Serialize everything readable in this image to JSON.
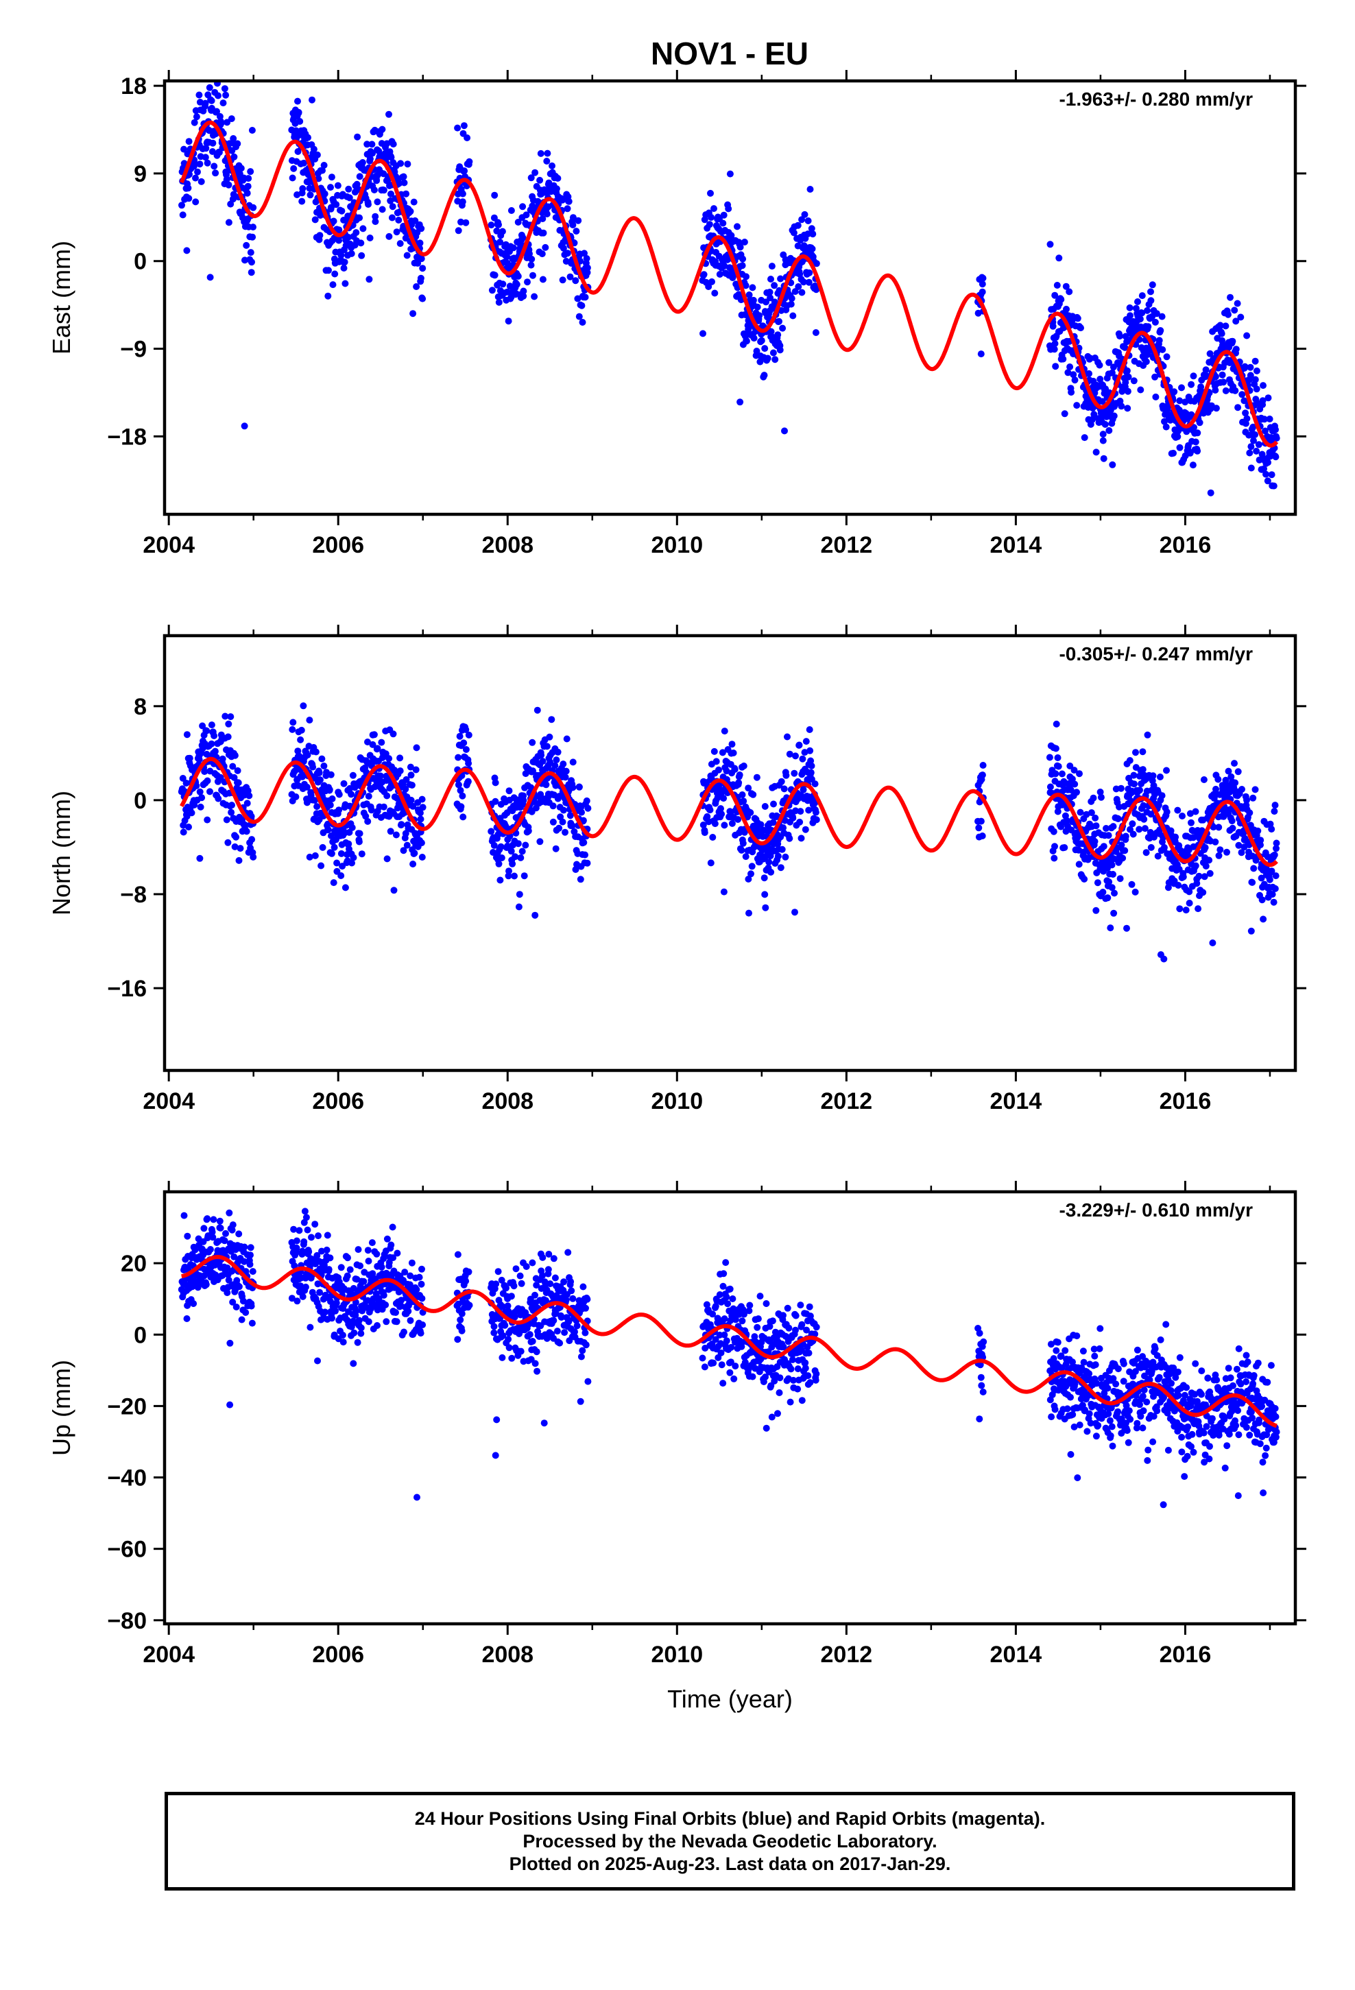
{
  "page": {
    "title": "NOV1 - EU"
  },
  "colors": {
    "data_points": "#0000ff",
    "model_fit": "#ff0000",
    "frame": "#000000"
  },
  "chart_data": [
    {
      "type": "scatter",
      "component": "East",
      "ylabel": "East (mm)",
      "xlabel": "",
      "rate_label": "-1.963+/- 0.280 mm/yr",
      "xlim": [
        2003.95,
        2017.3
      ],
      "ylim": [
        -26,
        18.5
      ],
      "xticks": [
        2004,
        2006,
        2008,
        2010,
        2012,
        2014,
        2016
      ],
      "xtick_labels": [
        "2004",
        "2006",
        "2008",
        "2010",
        "2012",
        "2014",
        "2016"
      ],
      "yticks": [
        18,
        9,
        0,
        -9,
        -18
      ],
      "ytick_labels": [
        "18",
        "9",
        "0",
        "−9",
        "−18"
      ],
      "grid": false,
      "model": {
        "offset": 10.5,
        "rate": -1.963,
        "amplitude": 4.3,
        "peak_phase": 0.5
      },
      "data_segments": [
        [
          2004.15,
          2005.0
        ],
        [
          2005.45,
          2007.0
        ],
        [
          2007.4,
          2007.55
        ],
        [
          2007.8,
          2008.95
        ],
        [
          2010.3,
          2011.65
        ],
        [
          2013.55,
          2013.62
        ],
        [
          2014.4,
          2017.08
        ]
      ],
      "scatter_sd": 2.3,
      "series": [
        {
          "name": "Final Orbits",
          "color": "#0000ff"
        },
        {
          "name": "Rapid Orbits",
          "color": "#ff00ff"
        }
      ]
    },
    {
      "type": "scatter",
      "component": "North",
      "ylabel": "North (mm)",
      "xlabel": "",
      "rate_label": "-0.305+/- 0.247 mm/yr",
      "xlim": [
        2003.95,
        2017.3
      ],
      "ylim": [
        -23,
        14
      ],
      "xticks": [
        2004,
        2006,
        2008,
        2010,
        2012,
        2014,
        2016
      ],
      "xtick_labels": [
        "2004",
        "2006",
        "2008",
        "2010",
        "2012",
        "2014",
        "2016"
      ],
      "yticks": [
        8,
        0,
        -8,
        -16
      ],
      "ytick_labels": [
        "8",
        "0",
        "−8",
        "−16"
      ],
      "grid": false,
      "model": {
        "offset": 1.0,
        "rate": -0.305,
        "amplitude": 2.6,
        "peak_phase": 0.5
      },
      "data_segments": [
        [
          2004.15,
          2005.0
        ],
        [
          2005.45,
          2007.0
        ],
        [
          2007.4,
          2007.55
        ],
        [
          2007.8,
          2008.95
        ],
        [
          2010.3,
          2011.65
        ],
        [
          2013.55,
          2013.62
        ],
        [
          2014.4,
          2017.08
        ]
      ],
      "scatter_sd": 2.0,
      "series": [
        {
          "name": "Final Orbits",
          "color": "#0000ff"
        },
        {
          "name": "Rapid Orbits",
          "color": "#ff00ff"
        }
      ]
    },
    {
      "type": "scatter",
      "component": "Up",
      "ylabel": "Up (mm)",
      "xlabel": "Time (year)",
      "rate_label": "-3.229+/- 0.610 mm/yr",
      "xlim": [
        2003.95,
        2017.3
      ],
      "ylim": [
        -81,
        40
      ],
      "xticks": [
        2004,
        2006,
        2008,
        2010,
        2012,
        2014,
        2016
      ],
      "xtick_labels": [
        "2004",
        "2006",
        "2008",
        "2010",
        "2012",
        "2014",
        "2016"
      ],
      "yticks": [
        20,
        0,
        -20,
        -40,
        -60,
        -80
      ],
      "ytick_labels": [
        "20",
        "0",
        "−20",
        "−40",
        "−60",
        "−80"
      ],
      "grid": false,
      "model": {
        "offset": 19.5,
        "rate": -3.229,
        "amplitude": 3.5,
        "peak_phase": 0.6
      },
      "data_segments": [
        [
          2004.15,
          2005.0
        ],
        [
          2005.45,
          2007.0
        ],
        [
          2007.4,
          2007.55
        ],
        [
          2007.8,
          2008.95
        ],
        [
          2010.3,
          2011.65
        ],
        [
          2013.55,
          2013.62
        ],
        [
          2014.4,
          2017.08
        ]
      ],
      "scatter_sd": 6.0,
      "series": [
        {
          "name": "Final Orbits",
          "color": "#0000ff"
        },
        {
          "name": "Rapid Orbits",
          "color": "#ff00ff"
        }
      ]
    }
  ],
  "caption": {
    "line1": "24 Hour Positions Using Final Orbits (blue) and Rapid Orbits (magenta).",
    "line2": "Processed by the Nevada Geodetic Laboratory.",
    "line3": "Plotted on 2025-Aug-23. Last data on 2017-Jan-29."
  }
}
